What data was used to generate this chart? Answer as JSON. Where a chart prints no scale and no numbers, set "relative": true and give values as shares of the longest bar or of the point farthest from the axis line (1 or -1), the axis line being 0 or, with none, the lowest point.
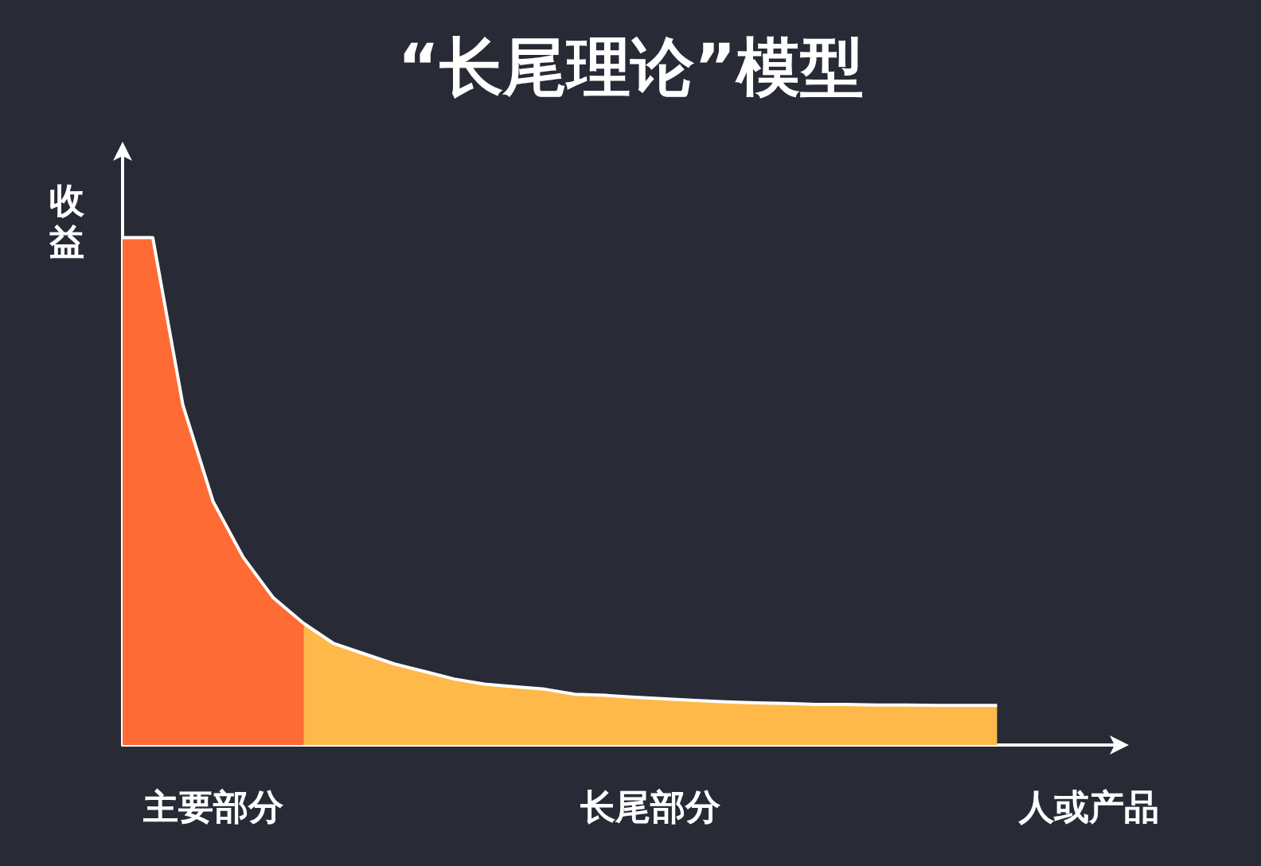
{
  "chart_data": {
    "type": "area",
    "title": "“长尾理论”模型",
    "xlabel": "人或产品",
    "ylabel": "收益",
    "relative": true,
    "grid": false,
    "annotations": [
      "主要部分",
      "长尾部分"
    ],
    "categories": [
      null,
      null,
      null,
      null,
      null,
      null,
      null,
      null,
      null,
      null,
      null,
      null,
      null,
      null,
      null,
      null,
      null,
      null,
      null,
      null,
      null,
      null,
      null,
      null,
      null,
      null,
      null,
      null,
      null,
      null,
      null,
      null,
      null,
      null
    ],
    "series": [
      {
        "color": "#ff6b35",
        "values": [
          1.0,
          1.0,
          0.67,
          0.48,
          0.37,
          0.29,
          0.24,
          null,
          null,
          null,
          null,
          null,
          null,
          null,
          null,
          null,
          null,
          null,
          null,
          null,
          null,
          null,
          null,
          null,
          null,
          null,
          null,
          null,
          null,
          null,
          null,
          null,
          null,
          null
        ]
      },
      {
        "color": "#ffb94a",
        "values": [
          null,
          null,
          null,
          null,
          null,
          null,
          0.24,
          0.2,
          0.18,
          0.16,
          0.145,
          0.13,
          0.12,
          0.115,
          0.11,
          0.1,
          0.098,
          0.094,
          0.091,
          0.088,
          0.085,
          0.083,
          0.082,
          0.08,
          0.08,
          0.079,
          0.079,
          0.078,
          0.078,
          0.078,
          null,
          null,
          null,
          null
        ]
      }
    ]
  }
}
